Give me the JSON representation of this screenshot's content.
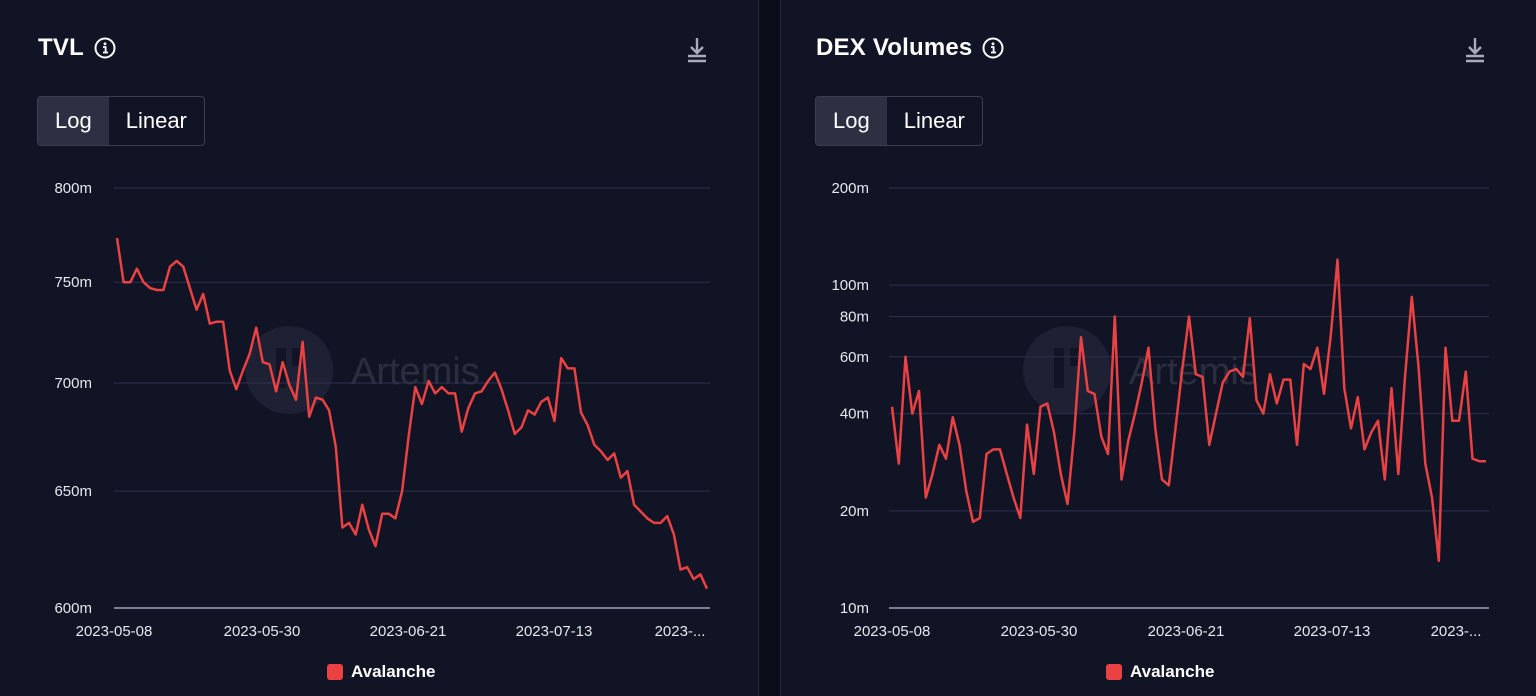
{
  "colors": {
    "series": "#ea4243",
    "panel_bg": "#111425",
    "grid": "#2d3150"
  },
  "icons": {
    "info": "info-icon",
    "download": "download-icon",
    "watermark": "artemis-logo-icon"
  },
  "watermark": "Artemis",
  "toggle": {
    "log_label": "Log",
    "linear_label": "Linear",
    "selected": "Log"
  },
  "chart_data": [
    {
      "type": "line",
      "title": "TVL",
      "scale": "log",
      "grid": true,
      "legend_position": "bottom-center",
      "x_tick_labels": [
        "2023-05-08",
        "2023-05-30",
        "2023-06-21",
        "2023-07-13",
        "2023-..."
      ],
      "y_tick_labels": [
        "800m",
        "750m",
        "700m",
        "650m",
        "600m"
      ],
      "y_ticks": [
        800,
        750,
        700,
        650,
        600
      ],
      "ylim": [
        600,
        800
      ],
      "series": [
        {
          "name": "Avalanche",
          "values": [
            773,
            750,
            750,
            757,
            750,
            747,
            746,
            746,
            758,
            761,
            758,
            747,
            736,
            744,
            729,
            730,
            730,
            706,
            697,
            706,
            714,
            727,
            710,
            709,
            696,
            710,
            699,
            692,
            720,
            684,
            693,
            692,
            687,
            670,
            634,
            636,
            631,
            644,
            633,
            626,
            640,
            640,
            638,
            650,
            675,
            698,
            690,
            701,
            695,
            698,
            695,
            695,
            677,
            688,
            695,
            696,
            701,
            705,
            697,
            687,
            676,
            679,
            687,
            685,
            691,
            693,
            682,
            712,
            707,
            707,
            686,
            680,
            671,
            668,
            664,
            667,
            656,
            659,
            644,
            641,
            638,
            636,
            636,
            639,
            631,
            616,
            617,
            612,
            614,
            608
          ]
        }
      ]
    },
    {
      "type": "line",
      "title": "DEX Volumes",
      "scale": "log",
      "grid": true,
      "legend_position": "bottom-center",
      "x_tick_labels": [
        "2023-05-08",
        "2023-05-30",
        "2023-06-21",
        "2023-07-13",
        "2023-..."
      ],
      "y_tick_labels": [
        "200m",
        "100m",
        "80m",
        "60m",
        "40m",
        "20m",
        "10m"
      ],
      "y_ticks": [
        200,
        100,
        80,
        60,
        40,
        20,
        10
      ],
      "ylim": [
        10,
        200
      ],
      "series": [
        {
          "name": "Avalanche",
          "values": [
            42,
            28,
            60,
            40,
            47,
            22,
            26,
            32,
            29,
            39,
            32,
            23,
            18.5,
            19,
            30,
            31,
            31,
            26,
            22,
            19,
            37,
            26,
            42,
            43,
            35,
            26,
            21,
            35,
            69,
            47,
            46,
            34,
            30,
            80,
            25,
            33,
            40,
            50,
            64,
            36,
            25,
            24,
            36,
            55,
            80,
            53,
            52,
            32,
            40,
            50,
            54,
            55,
            52,
            79,
            44,
            40,
            53,
            43,
            51,
            51,
            32,
            57,
            55,
            64,
            46,
            70,
            120,
            48,
            36,
            45,
            31,
            35,
            38,
            25,
            48,
            26,
            52,
            92,
            56,
            28,
            22,
            14,
            64,
            38,
            38,
            54,
            29,
            28.5,
            28.5
          ]
        }
      ]
    }
  ],
  "legend": {
    "label": "Avalanche"
  }
}
